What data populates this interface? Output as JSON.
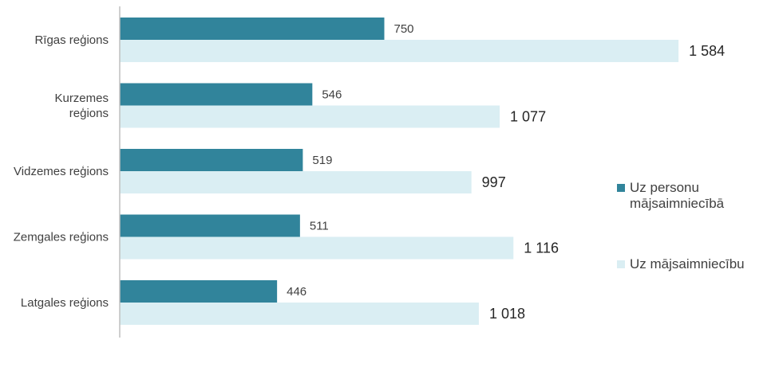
{
  "chart_data": {
    "type": "bar",
    "orientation": "horizontal",
    "title": "",
    "xlabel": "",
    "ylabel": "",
    "categories": [
      [
        "Rīgas reģions"
      ],
      [
        "Kurzemes",
        "reģions"
      ],
      [
        "Vidzemes reģions"
      ],
      [
        "Zemgales reģions"
      ],
      [
        "Latgales reģions"
      ]
    ],
    "series": [
      {
        "name": "Uz personu mājsaimniecībā",
        "name_lines": [
          "Uz personu",
          "mājsaimniecībā"
        ],
        "color": "#31849b",
        "values": [
          750,
          546,
          519,
          511,
          446
        ],
        "labels": [
          "750",
          "546",
          "519",
          "511",
          "446"
        ]
      },
      {
        "name": "Uz mājsaimniecību",
        "name_lines": [
          "Uz mājsaimniecību"
        ],
        "color": "#daeef3",
        "values": [
          1584,
          1077,
          997,
          1116,
          1018
        ],
        "labels": [
          "1 584",
          "1 077",
          "997",
          "1 116",
          "1 018"
        ]
      }
    ],
    "xlim": [
      0,
      1800
    ],
    "grid": false,
    "legend_position": "right"
  }
}
